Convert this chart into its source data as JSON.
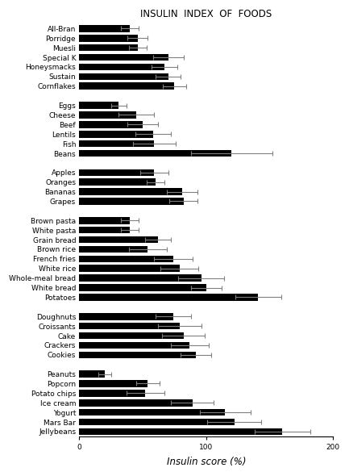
{
  "title": "INSULIN  INDEX  OF  FOODS",
  "xlabel": "Insulin score (%)",
  "categories": [
    "All-Bran",
    "Porridge",
    "Muesli",
    "Special K",
    "Honeysmacks",
    "Sustain",
    "Cornflakes",
    "",
    "Eggs",
    "Cheese",
    "Beef",
    "Lentils",
    "Fish",
    "Beans",
    "",
    "Apples",
    "Oranges",
    "Bananas",
    "Grapes",
    "",
    "Brown pasta",
    "White pasta",
    "Grain bread",
    "Brown rice",
    "French fries",
    "White rice",
    "Whole-meal bread",
    "White bread",
    "Potatoes",
    "",
    "Doughnuts",
    "Croissants",
    "Cake",
    "Crackers",
    "Cookies",
    "",
    "Peanuts",
    "Popcorn",
    "Potato chips",
    "Ice cream",
    "Yogurt",
    "Mars Bar",
    "Jellybeans"
  ],
  "values": [
    40,
    46,
    46,
    70,
    67,
    70,
    75,
    0,
    31,
    45,
    50,
    58,
    59,
    120,
    0,
    59,
    60,
    81,
    82,
    0,
    40,
    40,
    62,
    54,
    74,
    79,
    96,
    100,
    141,
    0,
    74,
    79,
    82,
    87,
    92,
    0,
    20,
    54,
    52,
    89,
    115,
    122,
    160
  ],
  "errors": [
    7,
    8,
    7,
    12,
    10,
    10,
    9,
    0,
    6,
    14,
    12,
    14,
    17,
    32,
    0,
    11,
    7,
    12,
    11,
    0,
    7,
    7,
    10,
    15,
    15,
    15,
    18,
    12,
    18,
    0,
    14,
    17,
    17,
    15,
    12,
    0,
    5,
    9,
    15,
    17,
    20,
    21,
    22
  ],
  "bar_color": "#000000",
  "error_color": "#808080",
  "background_color": "#ffffff",
  "xlim": [
    0,
    200
  ],
  "xticks": [
    0,
    100,
    200
  ],
  "figsize": [
    4.33,
    5.9
  ],
  "dpi": 100,
  "title_fontsize": 8.5,
  "label_fontsize": 6.5,
  "xlabel_fontsize": 8.5
}
